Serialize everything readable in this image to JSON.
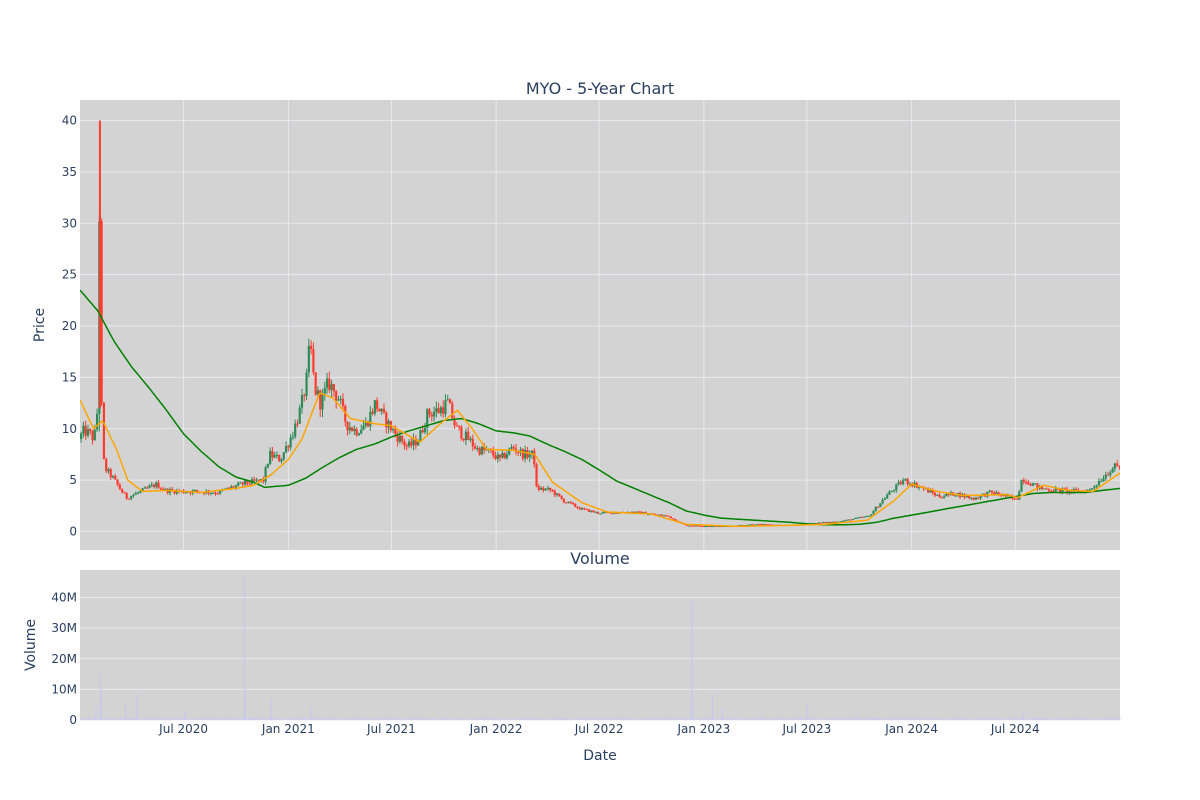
{
  "chart_data": [
    {
      "type": "candlestick",
      "title": "MYO - 5-Year Chart",
      "ylabel": "Price",
      "ylim": [
        -1.8,
        42
      ],
      "yticks": [
        0,
        5,
        10,
        15,
        20,
        25,
        30,
        35,
        40
      ],
      "xlim": [
        "2020-01-01",
        "2025-01-01"
      ],
      "grid": true,
      "colors": {
        "plot_bg": "#d3d3d3",
        "grid": "#e8e8f0",
        "up": "#2e8b57",
        "down": "#ff3b30",
        "ma_short": "#ffa500",
        "ma_long": "#008000"
      },
      "price_keypoints": [
        [
          "2020-01-01",
          9.0
        ],
        [
          "2020-01-10",
          9.8
        ],
        [
          "2020-01-20",
          9.5
        ],
        [
          "2020-01-28",
          9.0
        ],
        [
          "2020-02-03",
          12.0
        ],
        [
          "2020-02-05",
          40.0
        ],
        [
          "2020-02-07",
          22.0
        ],
        [
          "2020-02-10",
          12.0
        ],
        [
          "2020-02-13",
          7.0
        ],
        [
          "2020-02-18",
          6.0
        ],
        [
          "2020-03-01",
          5.2
        ],
        [
          "2020-03-15",
          4.0
        ],
        [
          "2020-03-25",
          3.3
        ],
        [
          "2020-04-15",
          3.8
        ],
        [
          "2020-05-01",
          4.2
        ],
        [
          "2020-05-15",
          4.6
        ],
        [
          "2020-06-01",
          4.0
        ],
        [
          "2020-07-01",
          3.9
        ],
        [
          "2020-08-01",
          3.9
        ],
        [
          "2020-09-01",
          3.8
        ],
        [
          "2020-10-01",
          4.4
        ],
        [
          "2020-10-20",
          4.7
        ],
        [
          "2020-11-20",
          5.0
        ],
        [
          "2020-12-01",
          7.5
        ],
        [
          "2020-12-20",
          7.0
        ],
        [
          "2021-01-10",
          9.5
        ],
        [
          "2021-01-25",
          12.0
        ],
        [
          "2021-02-05",
          15.0
        ],
        [
          "2021-02-10",
          18.5
        ],
        [
          "2021-02-18",
          14.0
        ],
        [
          "2021-03-01",
          12.5
        ],
        [
          "2021-03-15",
          14.5
        ],
        [
          "2021-04-01",
          13.0
        ],
        [
          "2021-04-15",
          10.5
        ],
        [
          "2021-05-01",
          9.8
        ],
        [
          "2021-05-20",
          10.5
        ],
        [
          "2021-06-05",
          12.5
        ],
        [
          "2021-06-20",
          11.0
        ],
        [
          "2021-07-10",
          9.5
        ],
        [
          "2021-08-01",
          8.2
        ],
        [
          "2021-08-20",
          9.0
        ],
        [
          "2021-09-05",
          11.5
        ],
        [
          "2021-09-25",
          11.8
        ],
        [
          "2021-10-10",
          12.5
        ],
        [
          "2021-10-25",
          10.0
        ],
        [
          "2021-11-15",
          9.0
        ],
        [
          "2021-12-01",
          8.0
        ],
        [
          "2021-12-20",
          7.8
        ],
        [
          "2022-01-10",
          7.0
        ],
        [
          "2022-02-01",
          8.2
        ],
        [
          "2022-02-20",
          7.5
        ],
        [
          "2022-03-10",
          7.5
        ],
        [
          "2022-03-15",
          4.2
        ],
        [
          "2022-04-10",
          4.0
        ],
        [
          "2022-05-01",
          3.0
        ],
        [
          "2022-06-01",
          2.2
        ],
        [
          "2022-07-01",
          1.8
        ],
        [
          "2022-09-01",
          1.9
        ],
        [
          "2022-11-01",
          1.5
        ],
        [
          "2022-12-01",
          0.6
        ],
        [
          "2023-02-01",
          0.5
        ],
        [
          "2023-04-01",
          0.7
        ],
        [
          "2023-06-01",
          0.6
        ],
        [
          "2023-07-15",
          0.8
        ],
        [
          "2023-09-01",
          1.0
        ],
        [
          "2023-10-20",
          1.5
        ],
        [
          "2023-11-20",
          3.5
        ],
        [
          "2023-12-20",
          5.0
        ],
        [
          "2024-01-20",
          4.3
        ],
        [
          "2024-02-20",
          3.4
        ],
        [
          "2024-03-20",
          3.7
        ],
        [
          "2024-04-20",
          3.2
        ],
        [
          "2024-05-20",
          3.8
        ],
        [
          "2024-06-20",
          3.4
        ],
        [
          "2024-07-05",
          3.0
        ],
        [
          "2024-07-15",
          5.2
        ],
        [
          "2024-08-15",
          4.2
        ],
        [
          "2024-09-20",
          4.0
        ],
        [
          "2024-10-20",
          3.9
        ],
        [
          "2024-11-10",
          4.0
        ],
        [
          "2024-11-25",
          4.8
        ],
        [
          "2024-12-20",
          6.2
        ],
        [
          "2025-01-01",
          6.3
        ]
      ],
      "ma_short_keypoints": [
        [
          "2020-01-01",
          12.8
        ],
        [
          "2020-01-25",
          10.0
        ],
        [
          "2020-02-10",
          10.8
        ],
        [
          "2020-03-05",
          8.0
        ],
        [
          "2020-03-25",
          5.0
        ],
        [
          "2020-04-20",
          3.9
        ],
        [
          "2020-06-01",
          4.0
        ],
        [
          "2020-08-01",
          3.8
        ],
        [
          "2020-10-01",
          4.2
        ],
        [
          "2020-11-01",
          4.5
        ],
        [
          "2020-12-01",
          5.5
        ],
        [
          "2021-01-01",
          7.0
        ],
        [
          "2021-01-25",
          9.0
        ],
        [
          "2021-02-25",
          13.5
        ],
        [
          "2021-03-20",
          13.0
        ],
        [
          "2021-04-20",
          11.0
        ],
        [
          "2021-06-01",
          10.5
        ],
        [
          "2021-07-01",
          10.3
        ],
        [
          "2021-08-20",
          8.7
        ],
        [
          "2021-09-25",
          10.5
        ],
        [
          "2021-10-25",
          11.8
        ],
        [
          "2021-11-20",
          10.0
        ],
        [
          "2021-12-15",
          8.0
        ],
        [
          "2022-02-01",
          7.9
        ],
        [
          "2022-03-10",
          7.5
        ],
        [
          "2022-04-10",
          4.8
        ],
        [
          "2022-06-01",
          2.8
        ],
        [
          "2022-07-15",
          1.9
        ],
        [
          "2022-10-01",
          1.7
        ],
        [
          "2022-12-01",
          0.7
        ],
        [
          "2023-03-01",
          0.5
        ],
        [
          "2023-06-01",
          0.6
        ],
        [
          "2023-08-01",
          0.7
        ],
        [
          "2023-10-15",
          1.1
        ],
        [
          "2023-12-01",
          3.0
        ],
        [
          "2024-01-01",
          4.6
        ],
        [
          "2024-02-15",
          3.9
        ],
        [
          "2024-04-01",
          3.5
        ],
        [
          "2024-06-15",
          3.6
        ],
        [
          "2024-07-05",
          3.3
        ],
        [
          "2024-08-20",
          4.5
        ],
        [
          "2024-10-01",
          4.0
        ],
        [
          "2024-11-15",
          3.9
        ],
        [
          "2025-01-01",
          5.7
        ]
      ],
      "ma_long_keypoints": [
        [
          "2020-01-01",
          23.5
        ],
        [
          "2020-02-01",
          21.5
        ],
        [
          "2020-03-01",
          18.5
        ],
        [
          "2020-04-01",
          16.0
        ],
        [
          "2020-05-01",
          14.0
        ],
        [
          "2020-06-01",
          11.8
        ],
        [
          "2020-07-01",
          9.5
        ],
        [
          "2020-08-01",
          7.8
        ],
        [
          "2020-09-01",
          6.3
        ],
        [
          "2020-10-01",
          5.3
        ],
        [
          "2020-11-01",
          4.8
        ],
        [
          "2020-11-20",
          4.3
        ],
        [
          "2021-01-01",
          4.5
        ],
        [
          "2021-02-01",
          5.2
        ],
        [
          "2021-03-01",
          6.2
        ],
        [
          "2021-04-01",
          7.2
        ],
        [
          "2021-05-01",
          8.0
        ],
        [
          "2021-06-01",
          8.5
        ],
        [
          "2021-07-01",
          9.2
        ],
        [
          "2021-08-01",
          9.8
        ],
        [
          "2021-09-01",
          10.3
        ],
        [
          "2021-10-01",
          10.8
        ],
        [
          "2021-11-01",
          11.0
        ],
        [
          "2021-12-01",
          10.5
        ],
        [
          "2022-01-01",
          9.8
        ],
        [
          "2022-02-01",
          9.6
        ],
        [
          "2022-03-01",
          9.3
        ],
        [
          "2022-04-01",
          8.5
        ],
        [
          "2022-05-01",
          7.8
        ],
        [
          "2022-06-01",
          7.0
        ],
        [
          "2022-07-01",
          6.0
        ],
        [
          "2022-08-01",
          4.9
        ],
        [
          "2022-09-01",
          4.2
        ],
        [
          "2022-10-01",
          3.5
        ],
        [
          "2022-11-01",
          2.8
        ],
        [
          "2022-12-01",
          2.0
        ],
        [
          "2023-01-01",
          1.6
        ],
        [
          "2023-02-01",
          1.3
        ],
        [
          "2023-03-01",
          1.2
        ],
        [
          "2023-04-01",
          1.1
        ],
        [
          "2023-05-01",
          1.0
        ],
        [
          "2023-06-01",
          0.9
        ],
        [
          "2023-07-01",
          0.75
        ],
        [
          "2023-08-01",
          0.65
        ],
        [
          "2023-09-01",
          0.65
        ],
        [
          "2023-10-01",
          0.7
        ],
        [
          "2023-11-01",
          0.9
        ],
        [
          "2023-12-01",
          1.3
        ],
        [
          "2024-01-01",
          1.6
        ],
        [
          "2024-02-01",
          1.9
        ],
        [
          "2024-03-01",
          2.2
        ],
        [
          "2024-04-01",
          2.5
        ],
        [
          "2024-05-01",
          2.8
        ],
        [
          "2024-06-01",
          3.1
        ],
        [
          "2024-07-01",
          3.4
        ],
        [
          "2024-08-01",
          3.7
        ],
        [
          "2024-09-01",
          3.8
        ],
        [
          "2024-10-01",
          3.8
        ],
        [
          "2024-11-01",
          3.8
        ],
        [
          "2024-12-01",
          4.0
        ],
        [
          "2025-01-01",
          4.2
        ]
      ]
    },
    {
      "type": "bar",
      "title": "Volume",
      "xlabel": "Date",
      "ylabel": "Volume",
      "ylim": [
        0,
        49000000
      ],
      "yticks": [
        0,
        10000000,
        20000000,
        30000000,
        40000000
      ],
      "ytick_labels": [
        "0",
        "10M",
        "20M",
        "30M",
        "40M"
      ],
      "xticks": [
        "2020-07-01",
        "2021-01-01",
        "2021-07-01",
        "2022-01-01",
        "2022-07-01",
        "2023-01-01",
        "2023-07-01",
        "2024-01-01",
        "2024-07-01"
      ],
      "xtick_labels": [
        "Jul 2020",
        "Jan 2021",
        "Jul 2021",
        "Jan 2022",
        "Jul 2022",
        "Jan 2023",
        "Jul 2023",
        "Jan 2024",
        "Jul 2024"
      ],
      "bar_color": "#c8c8ee",
      "volume_spikes": [
        [
          "2020-01-28",
          4000000
        ],
        [
          "2020-02-05",
          15000000
        ],
        [
          "2020-02-06",
          9000000
        ],
        [
          "2020-03-20",
          5000000
        ],
        [
          "2020-04-10",
          8000000
        ],
        [
          "2020-07-02",
          3000000
        ],
        [
          "2020-10-15",
          47000000
        ],
        [
          "2020-10-16",
          9000000
        ],
        [
          "2020-12-01",
          7000000
        ],
        [
          "2021-02-10",
          4000000
        ],
        [
          "2022-12-10",
          39000000
        ],
        [
          "2022-12-11",
          6000000
        ],
        [
          "2023-01-15",
          8000000
        ],
        [
          "2023-02-01",
          4000000
        ],
        [
          "2023-07-01",
          5000000
        ],
        [
          "2024-07-15",
          3000000
        ]
      ],
      "volume_base": 500000
    }
  ]
}
